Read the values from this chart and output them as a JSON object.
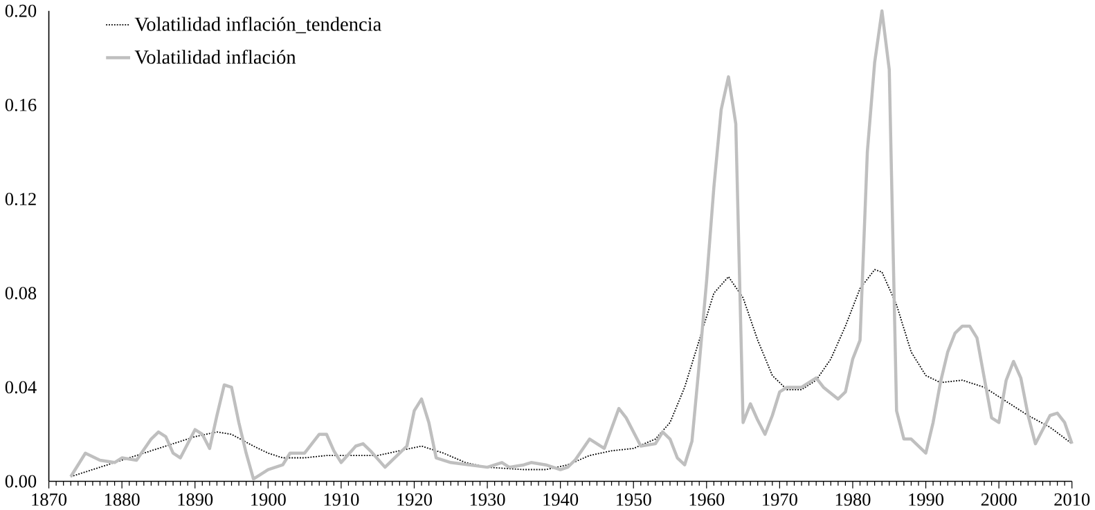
{
  "chart_data": {
    "type": "line",
    "xlim": [
      1870,
      2010
    ],
    "xticks": [
      1870,
      1880,
      1890,
      1900,
      1910,
      1920,
      1930,
      1940,
      1950,
      1960,
      1970,
      1980,
      1990,
      2000,
      2010
    ],
    "ylim": [
      0,
      0.2
    ],
    "yticks": [
      {
        "value": 0,
        "label": "0.00"
      },
      {
        "value": 0.04,
        "label": "0.04"
      },
      {
        "value": 0.08,
        "label": "0.08"
      },
      {
        "value": 0.12,
        "label": "0.12"
      },
      {
        "value": 0.16,
        "label": "0.16"
      },
      {
        "value": 0.2,
        "label": "0.20"
      }
    ],
    "legend": "top left",
    "grid": false,
    "marker": "none",
    "series": [
      {
        "name": "Volatilidad inflación_tendencia",
        "color": "#000000",
        "line_style": "dotted",
        "x": [
          1873,
          1876,
          1880,
          1885,
          1890,
          1893,
          1895,
          1898,
          1900,
          1902,
          1905,
          1908,
          1912,
          1915,
          1918,
          1921,
          1924,
          1927,
          1930,
          1935,
          1938,
          1941,
          1944,
          1947,
          1950,
          1953,
          1955,
          1957,
          1959,
          1961,
          1963,
          1965,
          1967,
          1969,
          1971,
          1973,
          1975,
          1977,
          1979,
          1981,
          1983,
          1984,
          1986,
          1988,
          1990,
          1992,
          1995,
          1998,
          2001,
          2004,
          2007,
          2010
        ],
        "values": [
          0.002,
          0.005,
          0.009,
          0.014,
          0.019,
          0.021,
          0.02,
          0.015,
          0.012,
          0.01,
          0.01,
          0.011,
          0.011,
          0.011,
          0.013,
          0.015,
          0.012,
          0.008,
          0.006,
          0.005,
          0.005,
          0.007,
          0.011,
          0.013,
          0.014,
          0.018,
          0.025,
          0.04,
          0.06,
          0.08,
          0.087,
          0.078,
          0.06,
          0.045,
          0.039,
          0.039,
          0.043,
          0.052,
          0.066,
          0.082,
          0.09,
          0.089,
          0.075,
          0.055,
          0.045,
          0.042,
          0.043,
          0.04,
          0.034,
          0.028,
          0.023,
          0.016
        ]
      },
      {
        "name": "Volatilidad inflación",
        "color": "#bfbfbf",
        "line_style": "solid",
        "x": [
          1873,
          1875,
          1877,
          1879,
          1880,
          1882,
          1884,
          1885,
          1886,
          1887,
          1888,
          1890,
          1891,
          1892,
          1893,
          1894,
          1895,
          1896,
          1897,
          1898,
          1900,
          1902,
          1903,
          1905,
          1907,
          1908,
          1909,
          1910,
          1912,
          1913,
          1914,
          1916,
          1918,
          1919,
          1920,
          1921,
          1922,
          1923,
          1925,
          1930,
          1932,
          1933,
          1935,
          1936,
          1938,
          1940,
          1941,
          1942,
          1944,
          1946,
          1948,
          1949,
          1951,
          1953,
          1954,
          1955,
          1956,
          1957,
          1958,
          1959,
          1960,
          1961,
          1962,
          1963,
          1964,
          1965,
          1966,
          1967,
          1968,
          1969,
          1970,
          1971,
          1973,
          1974,
          1975,
          1976,
          1978,
          1979,
          1980,
          1981,
          1982,
          1983,
          1984,
          1985,
          1986,
          1987,
          1988,
          1990,
          1991,
          1992,
          1993,
          1994,
          1995,
          1996,
          1997,
          1998,
          1999,
          2000,
          2001,
          2002,
          2003,
          2004,
          2005,
          2006,
          2007,
          2008,
          2009,
          2010
        ],
        "values": [
          0.002,
          0.012,
          0.009,
          0.008,
          0.01,
          0.009,
          0.018,
          0.021,
          0.019,
          0.012,
          0.01,
          0.022,
          0.02,
          0.014,
          0.028,
          0.041,
          0.04,
          0.025,
          0.012,
          0.001,
          0.005,
          0.007,
          0.012,
          0.012,
          0.02,
          0.02,
          0.013,
          0.008,
          0.015,
          0.016,
          0.013,
          0.006,
          0.012,
          0.015,
          0.03,
          0.035,
          0.025,
          0.01,
          0.008,
          0.006,
          0.008,
          0.006,
          0.007,
          0.008,
          0.007,
          0.005,
          0.006,
          0.009,
          0.018,
          0.014,
          0.031,
          0.027,
          0.015,
          0.016,
          0.021,
          0.018,
          0.01,
          0.007,
          0.017,
          0.05,
          0.085,
          0.125,
          0.158,
          0.172,
          0.152,
          0.025,
          0.033,
          0.026,
          0.02,
          0.028,
          0.038,
          0.04,
          0.04,
          0.042,
          0.044,
          0.04,
          0.035,
          0.038,
          0.052,
          0.06,
          0.14,
          0.178,
          0.2,
          0.175,
          0.03,
          0.018,
          0.018,
          0.012,
          0.025,
          0.042,
          0.055,
          0.063,
          0.066,
          0.066,
          0.061,
          0.044,
          0.027,
          0.025,
          0.043,
          0.051,
          0.044,
          0.028,
          0.016,
          0.022,
          0.028,
          0.029,
          0.025,
          0.016
        ]
      }
    ]
  }
}
